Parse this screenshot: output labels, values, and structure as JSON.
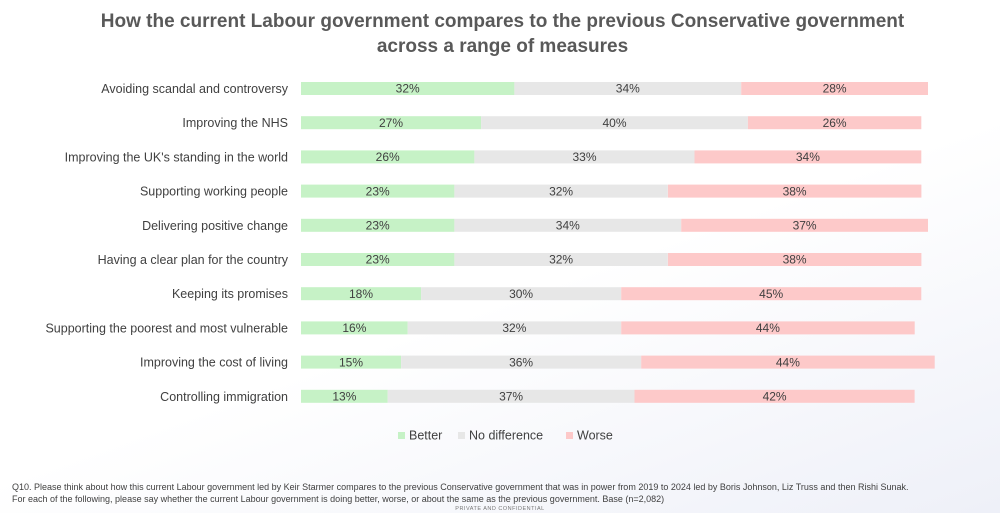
{
  "chart_data": {
    "type": "bar",
    "orientation": "horizontal",
    "stacked": true,
    "title": "How the current Labour government compares to the previous Conservative government across a range of measures",
    "categories": [
      "Avoiding scandal and controversy",
      "Improving the NHS",
      "Improving the UK's standing in the world",
      "Supporting working people",
      "Delivering positive change",
      "Having a clear plan for the country",
      "Keeping its promises",
      "Supporting the poorest and most vulnerable",
      "Improving the cost of living",
      "Controlling immigration"
    ],
    "series": [
      {
        "name": "Better",
        "color": "#c6f2c6",
        "values": [
          32,
          27,
          26,
          23,
          23,
          23,
          18,
          16,
          15,
          13
        ]
      },
      {
        "name": "No difference",
        "color": "#e7e7e7",
        "values": [
          34,
          40,
          33,
          32,
          34,
          32,
          30,
          32,
          36,
          37
        ]
      },
      {
        "name": "Worse",
        "color": "#fdc9c9",
        "values": [
          28,
          26,
          34,
          38,
          37,
          38,
          45,
          44,
          44,
          42
        ]
      }
    ],
    "value_suffix": "%",
    "legend_position": "bottom",
    "xlim": [
      0,
      100
    ]
  },
  "footnote": {
    "line1": "Q10. Please think about how this current Labour government led by Keir Starmer compares to the previous Conservative government that was in power from 2019 to 2024 led by Boris Johnson, Liz Truss and then Rishi Sunak.",
    "line2": "For each of the following, please say whether the current Labour government is doing better, worse, or about the same as the previous government. Base (n=2,082)"
  },
  "confidential": "PRIVATE AND CONFIDENTIAL"
}
